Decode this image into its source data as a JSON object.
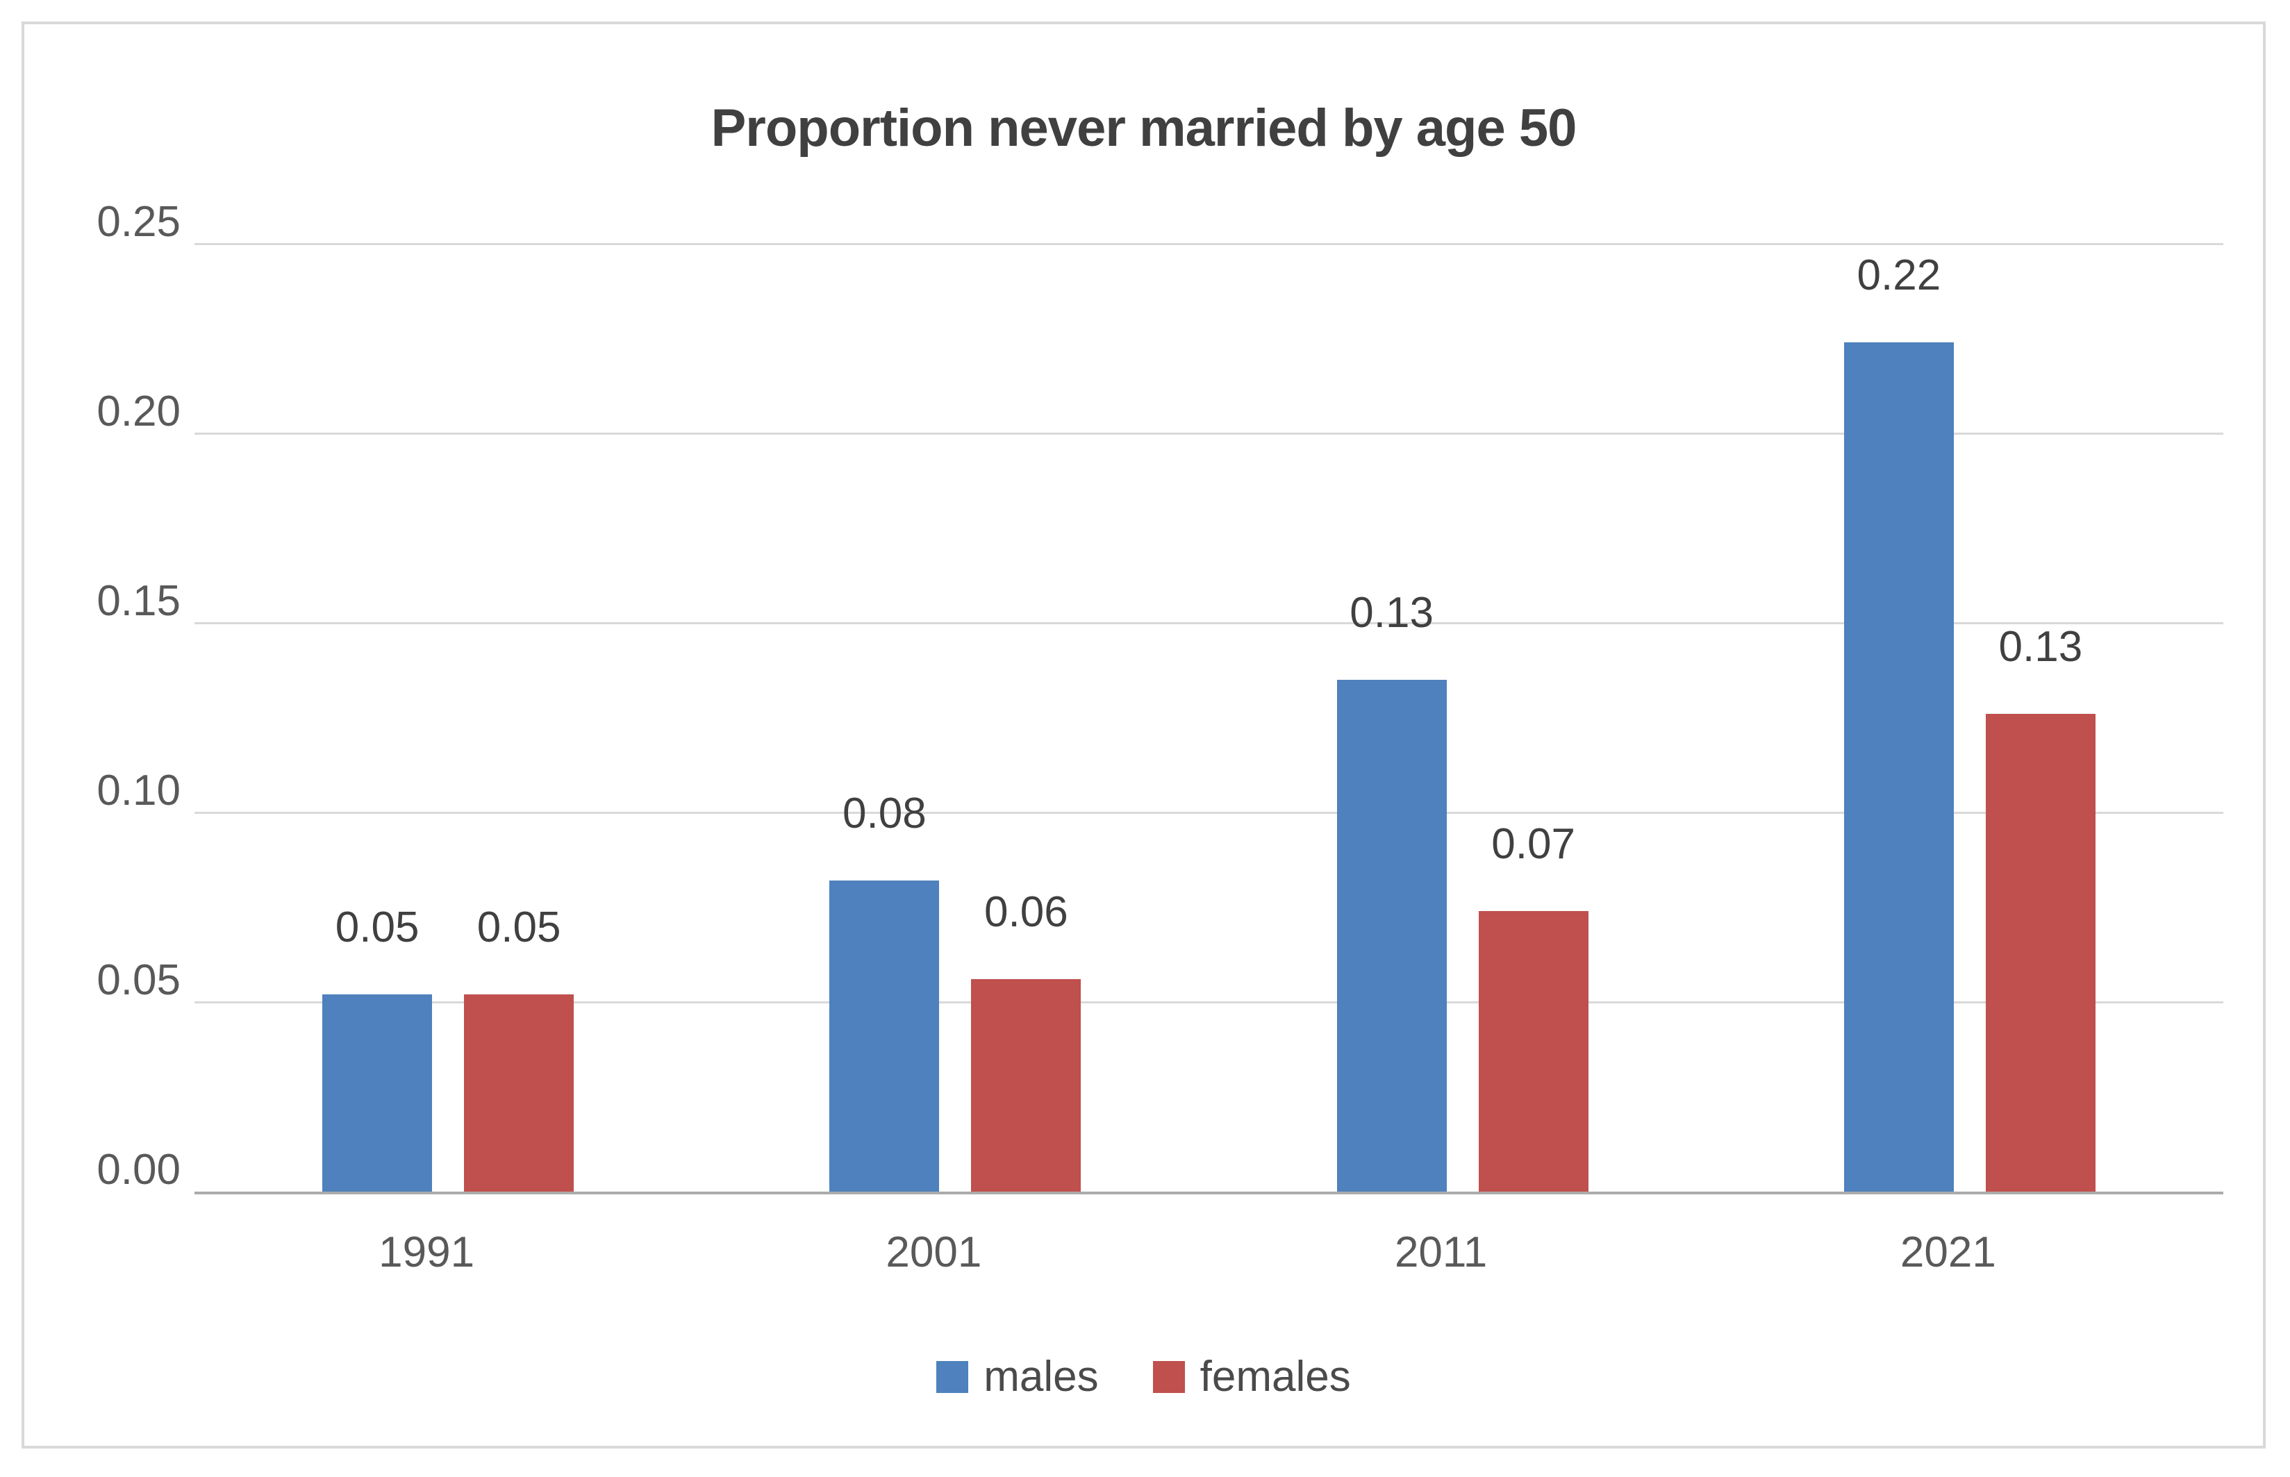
{
  "chart_data": {
    "type": "bar",
    "title": "Proportion never married by age 50",
    "categories": [
      "1991",
      "2001",
      "2011",
      "2021"
    ],
    "series": [
      {
        "name": "males",
        "color": "#4E81BD",
        "values": [
          0.052,
          0.082,
          0.135,
          0.224
        ],
        "labels": [
          "0.05",
          "0.08",
          "0.13",
          "0.22"
        ]
      },
      {
        "name": "females",
        "color": "#C0504D",
        "values": [
          0.052,
          0.056,
          0.074,
          0.126
        ],
        "labels": [
          "0.05",
          "0.06",
          "0.07",
          "0.13"
        ]
      }
    ],
    "y_ticks": [
      "0.25",
      "0.20",
      "0.15",
      "0.10",
      "0.05",
      "0.00"
    ],
    "y_tick_values": [
      0.25,
      0.2,
      0.15,
      0.1,
      0.05,
      0.0
    ],
    "ylim": [
      0,
      0.25
    ],
    "xlabel": "",
    "ylabel": "",
    "grid": true,
    "legend_position": "bottom",
    "colors": {
      "background": "#FFFFFF",
      "frame_border": "#D9D9D9",
      "gridline": "#D9D9D9",
      "axis_line": "#ABABAB",
      "tick_text": "#595959",
      "data_label_text": "#404040",
      "title_text": "#404040"
    }
  }
}
